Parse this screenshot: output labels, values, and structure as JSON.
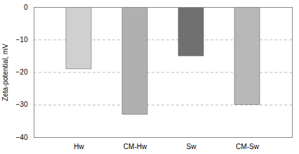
{
  "chart_data": {
    "type": "bar",
    "categories": [
      "Hw",
      "CM-Hw",
      "Sw",
      "CM-Sw"
    ],
    "values": [
      -19.0,
      -33.0,
      -15.0,
      -30.0
    ],
    "colors": [
      "#d0d0d0",
      "#b0b0b0",
      "#707070",
      "#b8b8b8"
    ],
    "ylabel": "Zeta-potential, mV",
    "ylim": [
      -40,
      0
    ],
    "yticks": [
      0,
      -10,
      -20,
      -30,
      -40
    ],
    "grid": true
  }
}
